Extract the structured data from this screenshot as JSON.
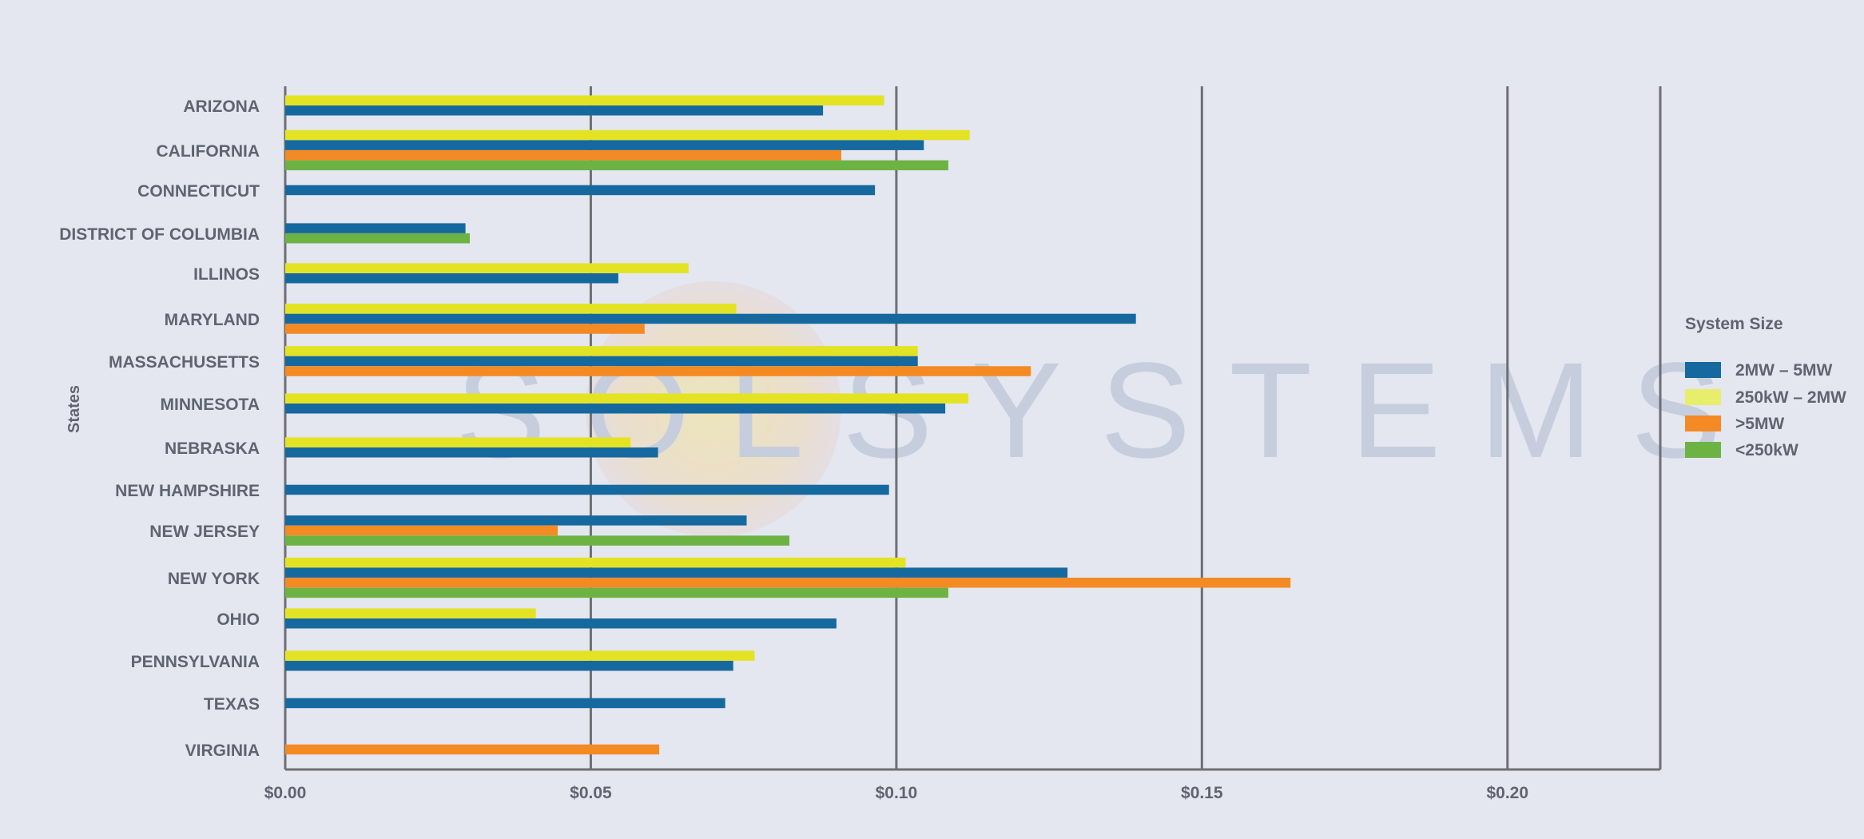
{
  "watermark": {
    "text": "SOLSYSTEMS"
  },
  "chart_data": {
    "type": "bar",
    "orientation": "horizontal",
    "title": "",
    "xlabel": "",
    "ylabel": "States",
    "xlim": [
      0,
      0.225
    ],
    "x_ticks": [
      0,
      0.05,
      0.1,
      0.15,
      0.2
    ],
    "x_tick_labels": [
      "$0.00",
      "$0.05",
      "$0.10",
      "$0.15",
      "$0.20"
    ],
    "grid": "vertical",
    "legend": {
      "title": "System Size",
      "placement": "right",
      "entries": [
        {
          "name": "2MW – 5MW",
          "color": "#16699e"
        },
        {
          "name": "250kW – 2MW",
          "color": "#e6ee6b"
        },
        {
          "name": ">5MW",
          "color": "#f38a24"
        },
        {
          "name": "<250kW",
          "color": "#6cb344"
        }
      ]
    },
    "series_colors": {
      "2MW – 5MW": "#16699e",
      "250kW – 2MW": "#e3e324",
      ">5MW": "#f38a24",
      "<250kW": "#6cb344"
    },
    "categories": [
      {
        "name": "ARIZONA",
        "bars": [
          {
            "series": "250kW – 2MW",
            "value": 0.098
          },
          {
            "series": "2MW – 5MW",
            "value": 0.088
          }
        ]
      },
      {
        "name": "CALIFORNIA",
        "bars": [
          {
            "series": "250kW – 2MW",
            "value": 0.112
          },
          {
            "series": "2MW – 5MW",
            "value": 0.1045
          },
          {
            "series": ">5MW",
            "value": 0.091
          },
          {
            "series": "<250kW",
            "value": 0.1085
          }
        ]
      },
      {
        "name": "CONNECTICUT",
        "bars": [
          {
            "series": "2MW – 5MW",
            "value": 0.0965
          }
        ]
      },
      {
        "name": "DISTRICT OF COLUMBIA",
        "bars": [
          {
            "series": "2MW – 5MW",
            "value": 0.0295
          },
          {
            "series": "<250kW",
            "value": 0.0302
          }
        ]
      },
      {
        "name": "ILLINOS",
        "bars": [
          {
            "series": "250kW – 2MW",
            "value": 0.066
          },
          {
            "series": "2MW – 5MW",
            "value": 0.0545
          }
        ]
      },
      {
        "name": "MARYLAND",
        "bars": [
          {
            "series": "250kW – 2MW",
            "value": 0.0738
          },
          {
            "series": "2MW – 5MW",
            "value": 0.1392
          },
          {
            "series": ">5MW",
            "value": 0.0588
          }
        ]
      },
      {
        "name": "MASSACHUSETTS",
        "bars": [
          {
            "series": "250kW – 2MW",
            "value": 0.1035
          },
          {
            "series": "2MW – 5MW",
            "value": 0.1035
          },
          {
            "series": ">5MW",
            "value": 0.122
          }
        ]
      },
      {
        "name": "MINNESOTA",
        "bars": [
          {
            "series": "250kW – 2MW",
            "value": 0.1118
          },
          {
            "series": "2MW – 5MW",
            "value": 0.108
          }
        ]
      },
      {
        "name": "NEBRASKA",
        "bars": [
          {
            "series": "250kW – 2MW",
            "value": 0.0565
          },
          {
            "series": "2MW – 5MW",
            "value": 0.061
          }
        ]
      },
      {
        "name": "NEW HAMPSHIRE",
        "bars": [
          {
            "series": "2MW – 5MW",
            "value": 0.0988
          }
        ]
      },
      {
        "name": "NEW JERSEY",
        "bars": [
          {
            "series": "2MW – 5MW",
            "value": 0.0755
          },
          {
            "series": ">5MW",
            "value": 0.0446
          },
          {
            "series": "<250kW",
            "value": 0.0825
          }
        ]
      },
      {
        "name": "NEW YORK",
        "bars": [
          {
            "series": "250kW – 2MW",
            "value": 0.1015
          },
          {
            "series": "2MW – 5MW",
            "value": 0.128
          },
          {
            "series": ">5MW",
            "value": 0.1645
          },
          {
            "series": "<250kW",
            "value": 0.1085
          }
        ]
      },
      {
        "name": "OHIO",
        "bars": [
          {
            "series": "250kW – 2MW",
            "value": 0.041
          },
          {
            "series": "2MW – 5MW",
            "value": 0.0902
          }
        ]
      },
      {
        "name": "PENNSYLVANIA",
        "bars": [
          {
            "series": "250kW – 2MW",
            "value": 0.0768
          },
          {
            "series": "2MW – 5MW",
            "value": 0.0733
          }
        ]
      },
      {
        "name": "TEXAS",
        "bars": [
          {
            "series": "2MW – 5MW",
            "value": 0.072
          }
        ]
      },
      {
        "name": "VIRGINIA",
        "bars": [
          {
            "series": ">5MW",
            "value": 0.0612
          }
        ]
      }
    ]
  }
}
